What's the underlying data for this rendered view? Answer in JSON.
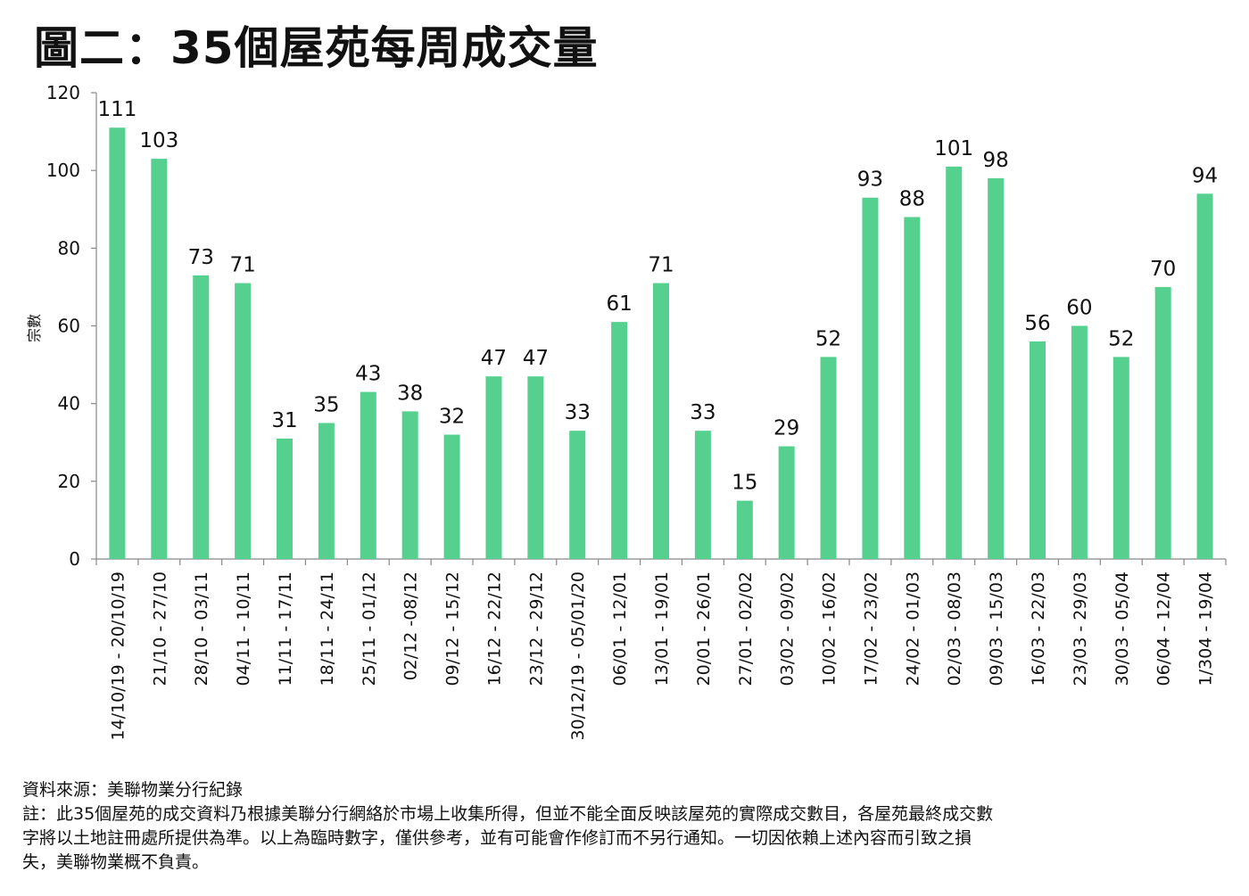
{
  "title": "圖二：35個屋苑每周成交量",
  "chart_data": {
    "type": "bar",
    "title": "圖二：35個屋苑每周成交量",
    "xlabel": "",
    "ylabel": "宗數",
    "ylim": [
      0,
      120
    ],
    "yticks": [
      0,
      20,
      40,
      60,
      80,
      100,
      120
    ],
    "grid": false,
    "legend": "none",
    "bar_color": "#55d08e",
    "categories": [
      "14/10/19 - 20/10/19",
      "21/10 - 27/10",
      "28/10 - 03/11",
      "04/11 - 10/11",
      "11/11 - 17/11",
      "18/11 - 24/11",
      "25/11 - 01/12",
      "02/12 -08/12",
      "09/12 - 15/12",
      "16/12 - 22/12",
      "23/12 - 29/12",
      "30/12/19 - 05/01/20",
      "06/01 - 12/01",
      "13/01 - 19/01",
      "20/01 - 26/01",
      "27/01 - 02/02",
      "03/02 - 09/02",
      "10/02 - 16/02",
      "17/02 - 23/02",
      "24/02 - 01/03",
      "02/03 - 08/03",
      "09/03 - 15/03",
      "16/03 - 22/03",
      "23/03 - 29/03",
      "30/03 - 05/04",
      "06/04 - 12/04",
      "1/304 - 19/04"
    ],
    "values": [
      111,
      103,
      73,
      71,
      31,
      35,
      43,
      38,
      32,
      47,
      47,
      33,
      61,
      71,
      33,
      15,
      29,
      52,
      93,
      88,
      101,
      98,
      56,
      60,
      52,
      70,
      94
    ]
  },
  "footnote": {
    "source": "資料來源：美聯物業分行紀錄",
    "lines": [
      "註：此35個屋苑的成交資料乃根據美聯分行網絡於市場上收集所得，但並不能全面反映該屋苑的實際成交數目，各屋苑最終成交數",
      "字將以土地註冊處所提供為準。以上為臨時數字，僅供參考，並有可能會作修訂而不另行通知。一切因依賴上述內容而引致之損",
      "失，美聯物業概不負責。"
    ]
  }
}
